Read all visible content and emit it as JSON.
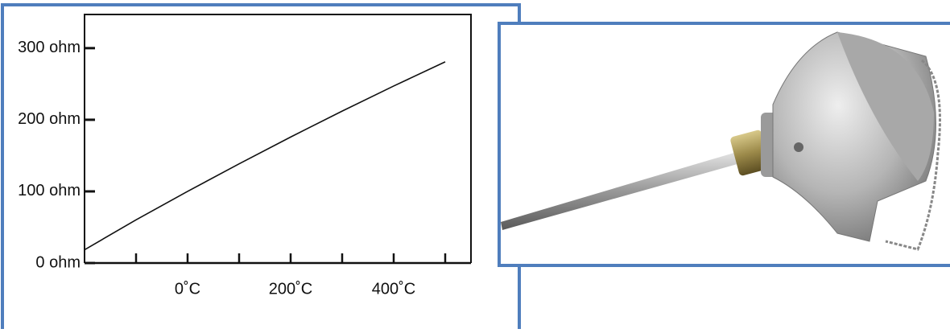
{
  "chart_data": {
    "type": "line",
    "x": [
      -200,
      -100,
      0,
      100,
      200,
      300,
      400,
      500
    ],
    "values": [
      18.5,
      60.3,
      100,
      138.5,
      175.9,
      212.1,
      247.1,
      280.9
    ],
    "color": "#111111",
    "xlim": [
      -200,
      550
    ],
    "ylim": [
      0,
      347
    ],
    "xticks": [
      {
        "value": 0,
        "label": "0˚C"
      },
      {
        "value": 200,
        "label": "200˚C"
      },
      {
        "value": 400,
        "label": "400˚C"
      }
    ],
    "xminor_ticks": [
      -100,
      100,
      300,
      500
    ],
    "yticks": [
      {
        "value": 0,
        "label": "0 ohm"
      },
      {
        "value": 100,
        "label": "100 ohm"
      },
      {
        "value": 200,
        "label": "200 ohm"
      },
      {
        "value": 300,
        "label": "300 ohm"
      }
    ]
  }
}
